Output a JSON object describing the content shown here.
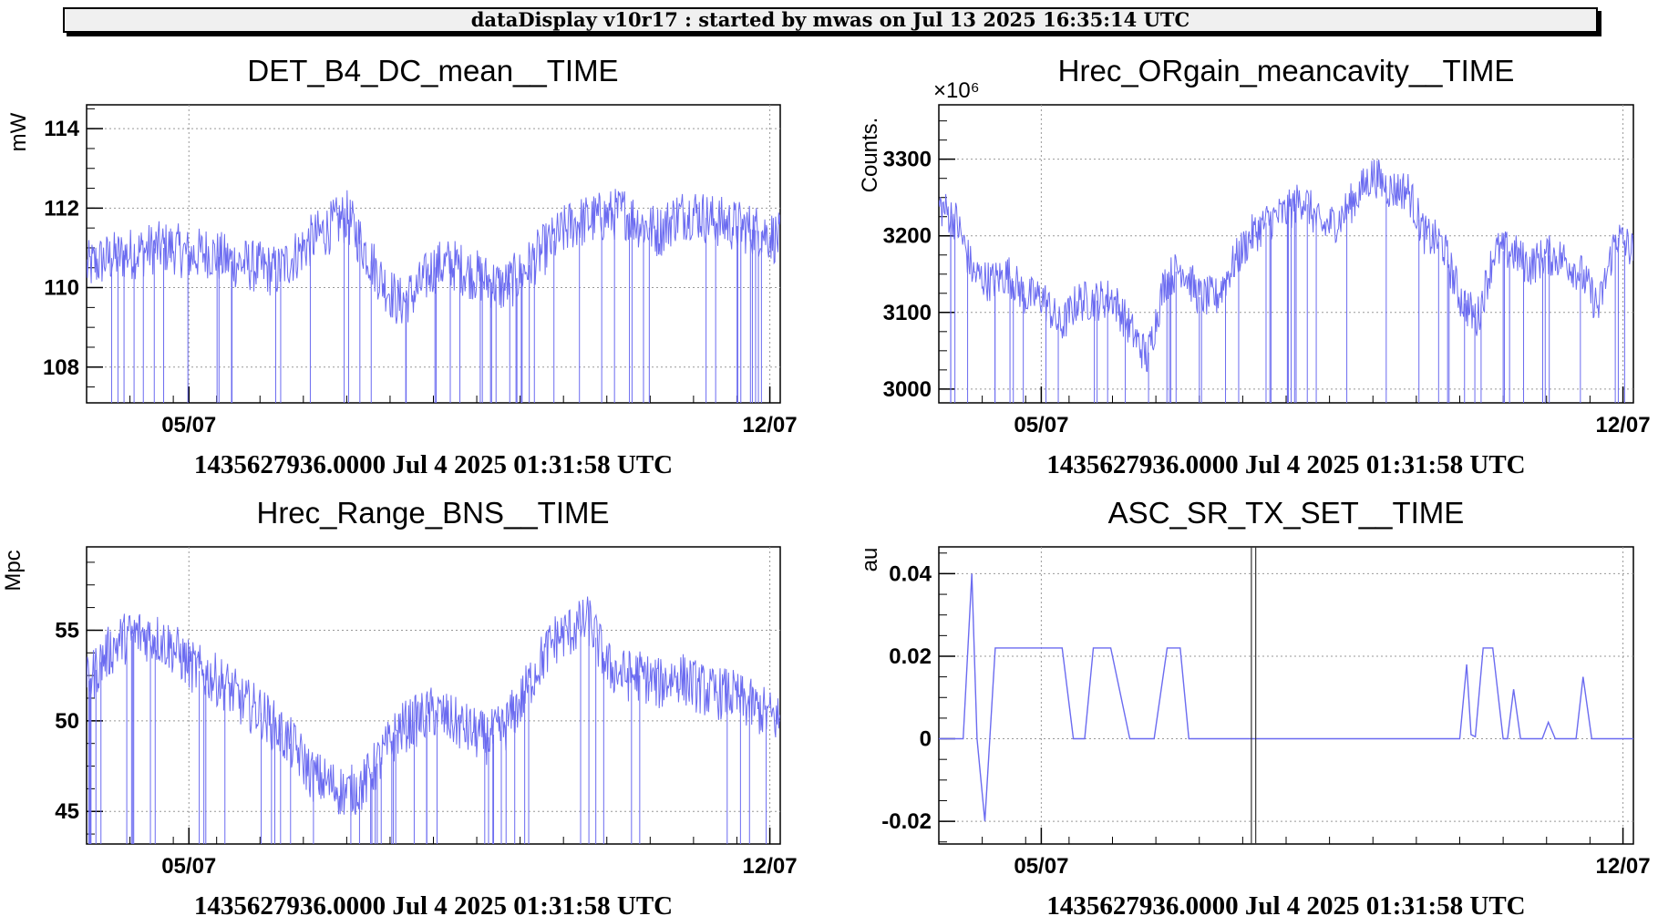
{
  "header": {
    "text": "dataDisplay v10r17 : started by mwas on Jul 13 2025 16:35:14 UTC"
  },
  "chart_data": [
    {
      "type": "line",
      "title": "DET_B4_DC_mean__TIME",
      "ylabel": "mW",
      "xlabel": "1435627936.0000 Jul 4 2025 01:31:58 UTC",
      "xlim": [
        "2025-07-04",
        "2025-07-12"
      ],
      "x_ticks": [
        "05/07",
        "12/07"
      ],
      "ylim": [
        107.1,
        114.6
      ],
      "y_ticks": [
        108,
        110,
        112,
        114
      ],
      "y_tick_labels": [
        "108",
        "110",
        "112",
        "114"
      ],
      "y_multiplier": "",
      "grid": true,
      "color": "#6b6bf0",
      "series": [
        {
          "x": [
            0.0,
            0.2,
            0.4,
            0.6,
            0.8,
            1.0,
            1.2,
            1.4,
            1.6,
            1.8,
            2.0,
            2.2,
            2.4,
            2.6,
            2.8,
            3.0,
            3.2,
            3.4,
            3.6,
            3.8,
            4.0,
            4.2,
            4.4,
            4.6,
            4.8,
            5.0,
            5.2,
            5.4,
            5.6,
            5.8,
            6.0,
            6.2,
            6.4,
            6.6,
            6.8,
            7.0,
            7.2,
            7.4,
            7.6,
            7.8,
            8.0
          ],
          "y": [
            110.5,
            110.7,
            110.8,
            110.9,
            111.0,
            111.0,
            110.8,
            110.9,
            110.7,
            110.6,
            110.5,
            110.4,
            110.8,
            111.2,
            111.5,
            111.8,
            111.0,
            110.2,
            109.6,
            109.9,
            110.5,
            110.6,
            110.4,
            110.2,
            110.0,
            110.3,
            110.8,
            111.2,
            111.6,
            111.7,
            111.8,
            111.9,
            111.6,
            111.4,
            111.8,
            111.9,
            111.7,
            111.6,
            111.5,
            111.4,
            111.2
          ]
        }
      ]
    },
    {
      "type": "line",
      "title": "Hrec_ORgain_meancavity__TIME",
      "ylabel": "Counts.",
      "xlabel": "1435627936.0000 Jul 4 2025 01:31:58 UTC",
      "xlim": [
        "2025-07-04",
        "2025-07-12"
      ],
      "x_ticks": [
        "05/07",
        "12/07"
      ],
      "ylim": [
        2982,
        3371
      ],
      "y_ticks": [
        3000,
        3100,
        3200,
        3300
      ],
      "y_tick_labels": [
        "3000",
        "3100",
        "3200",
        "3300"
      ],
      "y_multiplier": "×10⁶",
      "grid": true,
      "color": "#6b6bf0",
      "series": [
        {
          "x": [
            0.0,
            0.2,
            0.4,
            0.6,
            0.8,
            1.0,
            1.2,
            1.4,
            1.6,
            1.8,
            2.0,
            2.2,
            2.4,
            2.6,
            2.8,
            3.0,
            3.2,
            3.4,
            3.6,
            3.8,
            4.0,
            4.2,
            4.4,
            4.6,
            4.8,
            5.0,
            5.2,
            5.4,
            5.6,
            5.8,
            6.0,
            6.2,
            6.4,
            6.6,
            6.8,
            7.0,
            7.2,
            7.4,
            7.6,
            7.8,
            8.0
          ],
          "y": [
            3240,
            3220,
            3150,
            3140,
            3150,
            3120,
            3120,
            3080,
            3115,
            3115,
            3120,
            3080,
            3040,
            3140,
            3160,
            3120,
            3120,
            3165,
            3200,
            3220,
            3230,
            3250,
            3210,
            3220,
            3250,
            3280,
            3260,
            3260,
            3200,
            3190,
            3120,
            3090,
            3180,
            3180,
            3160,
            3175,
            3170,
            3150,
            3105,
            3200,
            3180
          ]
        }
      ]
    },
    {
      "type": "line",
      "title": "Hrec_Range_BNS__TIME",
      "ylabel": "Mpc",
      "xlabel": "1435627936.0000 Jul 4 2025 01:31:58 UTC",
      "xlim": [
        "2025-07-04",
        "2025-07-12"
      ],
      "x_ticks": [
        "05/07",
        "12/07"
      ],
      "ylim": [
        43.2,
        59.6
      ],
      "y_ticks": [
        45,
        50,
        55
      ],
      "y_tick_labels": [
        "45",
        "50",
        "55"
      ],
      "y_multiplier": "",
      "grid": true,
      "color": "#6b6bf0",
      "series": [
        {
          "x": [
            0.0,
            0.2,
            0.4,
            0.6,
            0.8,
            1.0,
            1.2,
            1.4,
            1.6,
            1.8,
            2.0,
            2.2,
            2.4,
            2.6,
            2.8,
            3.0,
            3.2,
            3.4,
            3.6,
            3.8,
            4.0,
            4.2,
            4.4,
            4.6,
            4.8,
            5.0,
            5.2,
            5.4,
            5.6,
            5.8,
            6.0,
            6.2,
            6.4,
            6.6,
            6.8,
            7.0,
            7.2,
            7.4,
            7.6,
            7.8,
            8.0
          ],
          "y": [
            52.0,
            53.5,
            54.5,
            54.8,
            54.6,
            54.0,
            53.0,
            52.5,
            52.0,
            51.0,
            50.5,
            49.5,
            48.5,
            47.0,
            46.5,
            46.0,
            46.5,
            48.0,
            49.5,
            50.0,
            50.5,
            50.0,
            49.5,
            49.0,
            49.5,
            51.0,
            53.0,
            54.5,
            55.0,
            55.5,
            53.0,
            52.5,
            52.5,
            52.0,
            52.5,
            52.0,
            51.5,
            51.5,
            51.0,
            50.5,
            50.0
          ]
        }
      ]
    },
    {
      "type": "line",
      "title": "ASC_SR_TX_SET__TIME",
      "ylabel": "au",
      "xlabel": "1435627936.0000 Jul 4 2025 01:31:58 UTC",
      "xlim": [
        "2025-07-04",
        "2025-07-12"
      ],
      "x_ticks": [
        "05/07",
        "12/07"
      ],
      "ylim": [
        -0.0255,
        0.0465
      ],
      "y_ticks": [
        -0.02,
        0,
        0.02,
        0.04
      ],
      "y_tick_labels": [
        "-0.02",
        "0",
        "0.02",
        "0.04"
      ],
      "y_multiplier": "",
      "grid": true,
      "color": "#6b6bf0",
      "series": [
        {
          "x": [
            0.0,
            0.28,
            0.38,
            0.44,
            0.53,
            0.65,
            1.42,
            1.55,
            1.68,
            1.78,
            1.98,
            2.2,
            2.48,
            2.63,
            2.78,
            2.88,
            3.05,
            3.15,
            5.15,
            6.0,
            6.08,
            6.13,
            6.18,
            6.27,
            6.38,
            6.5,
            6.55,
            6.62,
            6.7,
            6.95,
            7.02,
            7.1,
            7.34,
            7.42,
            7.52,
            8.0
          ],
          "y": [
            0,
            0,
            0.04,
            0.0,
            -0.02,
            0.022,
            0.022,
            0,
            0,
            0.022,
            0.022,
            0,
            0,
            0.022,
            0.022,
            0,
            0,
            0,
            0,
            0,
            0.018,
            0.001,
            0.0005,
            0.022,
            0.022,
            0,
            0,
            0.012,
            0,
            0,
            0.004,
            0,
            0,
            0.015,
            0,
            0
          ]
        }
      ]
    }
  ]
}
